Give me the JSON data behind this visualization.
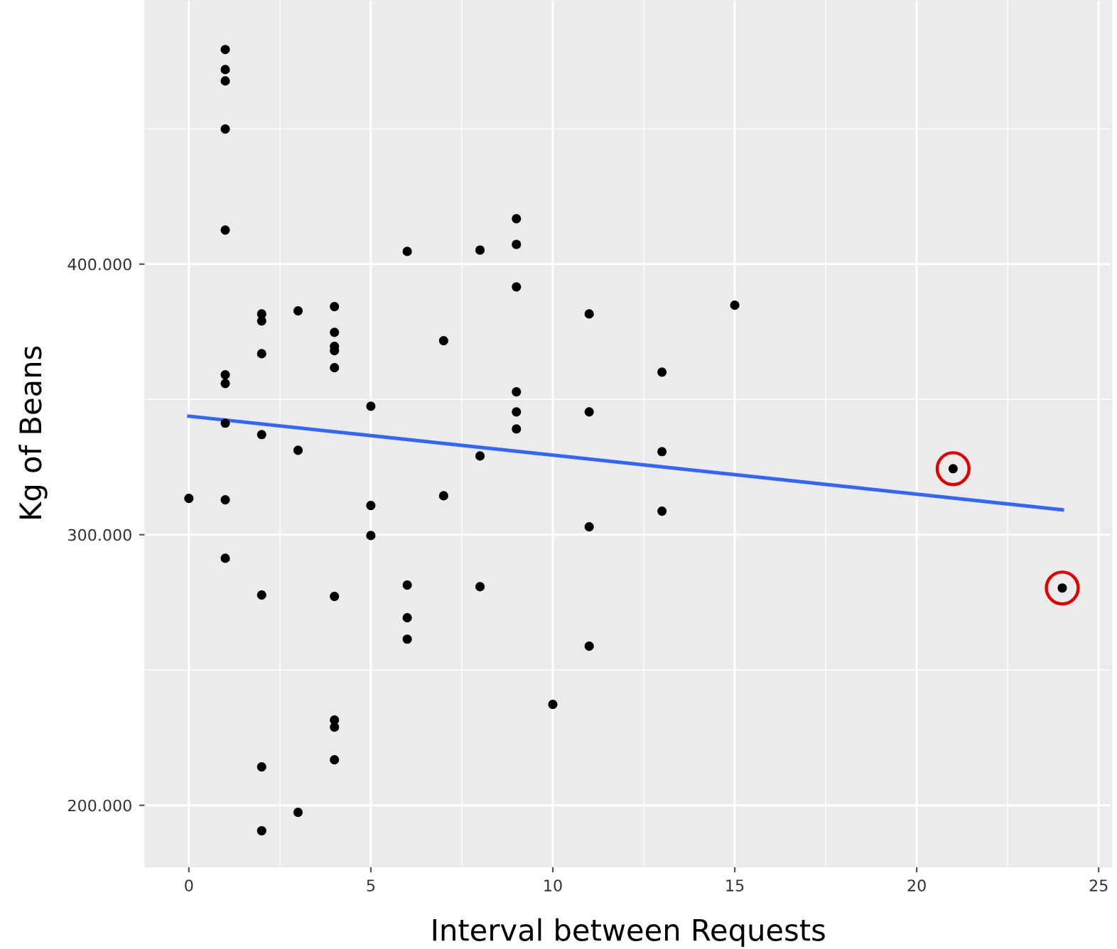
{
  "chart_data": {
    "type": "scatter",
    "xlabel": "Interval between Requests",
    "ylabel": "Kg of Beans",
    "xlim": [
      -1.2,
      25.35
    ],
    "xticks": [
      0,
      5,
      10,
      15,
      20,
      25
    ],
    "ylim": [
      177400,
      497600
    ],
    "yticks": [
      {
        "value": 200000,
        "label": "200.000"
      },
      {
        "value": 300000,
        "label": "300.000"
      },
      {
        "value": 400000,
        "label": "400.000"
      }
    ],
    "grid": true,
    "marker": "circle",
    "series": [
      {
        "color": "#000000",
        "x": [
          0,
          1,
          1,
          1,
          1,
          1,
          1,
          1,
          1,
          1,
          1,
          2,
          2,
          2,
          2,
          2,
          2,
          2,
          3,
          3,
          3,
          4,
          4,
          4,
          4,
          4,
          4,
          4,
          4,
          4,
          5,
          5,
          5,
          6,
          6,
          6,
          6,
          7,
          7,
          8,
          8,
          8,
          9,
          9,
          9,
          9,
          9,
          9,
          10,
          11,
          11,
          11,
          11,
          13,
          13,
          13,
          15,
          21,
          24
        ],
        "values": [
          313400,
          479300,
          471900,
          467700,
          449900,
          412600,
          359100,
          355900,
          341200,
          312900,
          291300,
          381600,
          379000,
          366900,
          337000,
          277700,
          214200,
          190600,
          382700,
          331200,
          197400,
          384300,
          374800,
          369600,
          368000,
          361700,
          277200,
          231500,
          228900,
          216800,
          347500,
          310800,
          299700,
          404700,
          281400,
          269300,
          261400,
          371700,
          314400,
          405200,
          329100,
          280800,
          416800,
          407300,
          391600,
          352800,
          345400,
          339100,
          237300,
          381600,
          345400,
          302900,
          258800,
          360100,
          330700,
          308700,
          384800,
          324400,
          280300
        ]
      },
      {
        "type": "line",
        "color": "#3366ff",
        "x": [
          0,
          24
        ],
        "values": [
          343800,
          309200
        ],
        "marker": "none"
      },
      {
        "type": "bubble",
        "color": "#e00000",
        "x": [
          21,
          24
        ],
        "values": [
          324400,
          280300
        ],
        "sizes": [
          1,
          1
        ]
      }
    ]
  }
}
